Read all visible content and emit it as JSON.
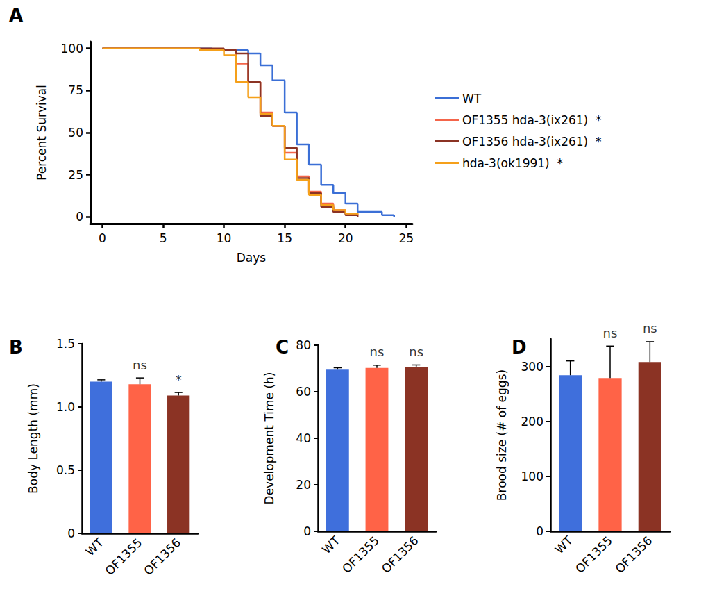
{
  "chart_data": [
    {
      "type": "line",
      "title": "A",
      "x_label": "Days",
      "y_label": "Percent Survival",
      "xlim": [
        -1,
        25.5
      ],
      "xticks": [
        0,
        5,
        10,
        15,
        20,
        25
      ],
      "ylim": [
        -4,
        104
      ],
      "yticks": [
        0,
        25,
        50,
        75,
        100
      ],
      "grid": false,
      "legend": "right",
      "line_style": "step",
      "series": [
        {
          "name": "WT",
          "color": "#3b6fd6",
          "x": [
            0,
            9,
            12,
            13,
            14,
            15,
            16,
            17,
            18,
            19,
            20,
            21,
            23,
            24
          ],
          "values": [
            100,
            99,
            97,
            90,
            81,
            62,
            43,
            31,
            19,
            14,
            8,
            3,
            1,
            0
          ]
        },
        {
          "name": "OF1355 hda-3(ix261)  *",
          "color": "#f4654a",
          "x": [
            0,
            8,
            11,
            12,
            13,
            14,
            15,
            16,
            17,
            18,
            19,
            20,
            21
          ],
          "values": [
            100,
            99,
            91,
            80,
            62,
            54,
            38,
            24,
            15,
            8,
            4,
            2,
            1
          ]
        },
        {
          "name": "OF1356 hda-3(ix261)  *",
          "color": "#8b3324",
          "x": [
            0,
            10,
            11,
            12,
            13,
            14,
            15,
            16,
            17,
            18,
            19,
            20,
            21
          ],
          "values": [
            100,
            99,
            97,
            80,
            60,
            54,
            41,
            23,
            14,
            6,
            3,
            1,
            0
          ]
        },
        {
          "name": "hda-3(ok1991)  *",
          "color": "#f5a01a",
          "x": [
            0,
            8,
            10,
            11,
            12,
            13,
            14,
            15,
            16,
            17,
            18,
            19,
            20,
            21
          ],
          "values": [
            100,
            99,
            96,
            80,
            71,
            61,
            54,
            34,
            22,
            13,
            7,
            4,
            2,
            1
          ]
        }
      ]
    },
    {
      "type": "bar",
      "title": "B",
      "y_label": "Body Length (mm)",
      "categories": [
        "WT",
        "OF1355",
        "OF1356"
      ],
      "values": [
        1.2,
        1.18,
        1.09
      ],
      "errors": [
        0.015,
        0.05,
        0.025
      ],
      "annotations": [
        null,
        "ns",
        "*"
      ],
      "colors": [
        "#3f6fdc",
        "#ff6347",
        "#8b3324"
      ],
      "ylim": [
        0,
        1.5
      ],
      "yticks": [
        0,
        0.5,
        {
          "value": 1,
          "label": "1.0"
        },
        1.5
      ],
      "grid": false
    },
    {
      "type": "bar",
      "title": "C",
      "y_label": "Development Time (h)",
      "categories": [
        "WT",
        "OF1355",
        "OF1356"
      ],
      "values": [
        69.5,
        70.2,
        70.5
      ],
      "errors": [
        0.8,
        1.2,
        1.0
      ],
      "annotations": [
        null,
        "ns",
        "ns"
      ],
      "colors": [
        "#3f6fdc",
        "#ff6347",
        "#8b3324"
      ],
      "ylim": [
        0,
        80
      ],
      "yticks": [
        0,
        20,
        40,
        60,
        80
      ],
      "grid": false
    },
    {
      "type": "bar",
      "title": "D",
      "y_label": "Brood size (# of eggs)",
      "categories": [
        "WT",
        "OF1355",
        "OF1356"
      ],
      "values": [
        284,
        279,
        308
      ],
      "errors": [
        26,
        58,
        37
      ],
      "annotations": [
        null,
        "ns",
        "ns"
      ],
      "colors": [
        "#3f6fdc",
        "#ff6347",
        "#8b3324"
      ],
      "ylim": [
        0,
        350
      ],
      "yticks": [
        0,
        100,
        200,
        300
      ],
      "grid": false
    }
  ]
}
